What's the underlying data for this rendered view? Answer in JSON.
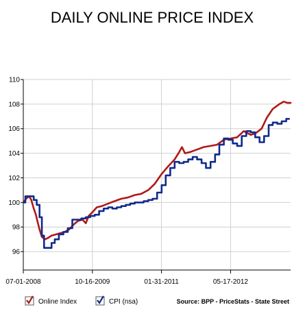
{
  "chart_data": {
    "type": "line",
    "title": "DAILY ONLINE PRICE INDEX",
    "source": "Source: BPP - PriceStats - State Street",
    "x_ticks": [
      "07-01-2008",
      "10-16-2009",
      "01-31-2011",
      "05-17-2012"
    ],
    "y_ticks": [
      "96",
      "98",
      "100",
      "102",
      "104",
      "106",
      "108",
      "110"
    ],
    "xlim": [
      "2008-07-01",
      "2013-07-01"
    ],
    "ylim": [
      94.5,
      110
    ],
    "grid": true,
    "legend_position": "bottom-left",
    "series": [
      {
        "name": "Online Index",
        "color": "#b01818",
        "style": "smooth",
        "points": [
          [
            "2008-07-01",
            100.0
          ],
          [
            "2008-07-20",
            100.3
          ],
          [
            "2008-08-10",
            100.5
          ],
          [
            "2008-08-25",
            100.2
          ],
          [
            "2008-09-10",
            99.5
          ],
          [
            "2008-09-25",
            99.0
          ],
          [
            "2008-10-05",
            98.5
          ],
          [
            "2008-10-20",
            97.8
          ],
          [
            "2008-11-05",
            97.2
          ],
          [
            "2008-11-25",
            97.0
          ],
          [
            "2008-12-15",
            97.1
          ],
          [
            "2009-01-10",
            97.3
          ],
          [
            "2009-02-10",
            97.4
          ],
          [
            "2009-03-10",
            97.5
          ],
          [
            "2009-04-10",
            97.6
          ],
          [
            "2009-05-10",
            97.8
          ],
          [
            "2009-06-10",
            98.2
          ],
          [
            "2009-07-10",
            98.5
          ],
          [
            "2009-08-10",
            98.6
          ],
          [
            "2009-09-01",
            98.3
          ],
          [
            "2009-09-20",
            98.9
          ],
          [
            "2009-10-16",
            99.2
          ],
          [
            "2009-11-15",
            99.6
          ],
          [
            "2009-12-20",
            99.7
          ],
          [
            "2010-02-01",
            99.9
          ],
          [
            "2010-03-15",
            100.1
          ],
          [
            "2010-05-01",
            100.3
          ],
          [
            "2010-06-15",
            100.4
          ],
          [
            "2010-08-01",
            100.6
          ],
          [
            "2010-09-15",
            100.7
          ],
          [
            "2010-11-01",
            101.0
          ],
          [
            "2010-12-15",
            101.5
          ],
          [
            "2011-01-31",
            102.3
          ],
          [
            "2011-03-15",
            102.9
          ],
          [
            "2011-05-01",
            103.5
          ],
          [
            "2011-06-01",
            104.1
          ],
          [
            "2011-06-20",
            104.5
          ],
          [
            "2011-07-10",
            104.0
          ],
          [
            "2011-08-15",
            104.1
          ],
          [
            "2011-10-01",
            104.3
          ],
          [
            "2011-11-15",
            104.5
          ],
          [
            "2012-01-01",
            104.6
          ],
          [
            "2012-02-15",
            104.7
          ],
          [
            "2012-04-01",
            105.1
          ],
          [
            "2012-05-17",
            105.2
          ],
          [
            "2012-07-01",
            105.3
          ],
          [
            "2012-08-15",
            105.8
          ],
          [
            "2012-10-01",
            105.5
          ],
          [
            "2012-11-01",
            105.6
          ],
          [
            "2012-12-15",
            106.0
          ],
          [
            "2013-01-20",
            106.9
          ],
          [
            "2013-03-01",
            107.6
          ],
          [
            "2013-04-15",
            108.0
          ],
          [
            "2013-05-15",
            108.2
          ],
          [
            "2013-06-10",
            108.1
          ],
          [
            "2013-07-01",
            108.1
          ]
        ]
      },
      {
        "name": "CPI (nsa)",
        "color": "#102a8c",
        "style": "step",
        "points": [
          [
            "2008-07-01",
            100.0
          ],
          [
            "2008-07-15",
            100.5
          ],
          [
            "2008-09-10",
            100.2
          ],
          [
            "2008-10-01",
            99.8
          ],
          [
            "2008-10-20",
            98.8
          ],
          [
            "2008-11-05",
            97.3
          ],
          [
            "2008-11-20",
            96.3
          ],
          [
            "2008-12-15",
            96.3
          ],
          [
            "2009-01-10",
            96.7
          ],
          [
            "2009-02-01",
            97.0
          ],
          [
            "2009-03-01",
            97.4
          ],
          [
            "2009-04-01",
            97.6
          ],
          [
            "2009-05-01",
            97.9
          ],
          [
            "2009-06-01",
            98.6
          ],
          [
            "2009-07-01",
            98.6
          ],
          [
            "2009-08-01",
            98.7
          ],
          [
            "2009-09-01",
            98.8
          ],
          [
            "2009-10-01",
            98.9
          ],
          [
            "2009-11-01",
            99.0
          ],
          [
            "2009-12-01",
            99.3
          ],
          [
            "2010-01-01",
            99.5
          ],
          [
            "2010-02-01",
            99.6
          ],
          [
            "2010-03-01",
            99.5
          ],
          [
            "2010-04-01",
            99.6
          ],
          [
            "2010-05-01",
            99.7
          ],
          [
            "2010-06-01",
            99.8
          ],
          [
            "2010-07-01",
            99.9
          ],
          [
            "2010-08-01",
            100.0
          ],
          [
            "2010-09-01",
            100.0
          ],
          [
            "2010-10-01",
            100.1
          ],
          [
            "2010-11-01",
            100.2
          ],
          [
            "2010-12-01",
            100.3
          ],
          [
            "2011-01-01",
            100.8
          ],
          [
            "2011-02-01",
            101.4
          ],
          [
            "2011-03-01",
            102.2
          ],
          [
            "2011-04-01",
            102.8
          ],
          [
            "2011-05-01",
            103.3
          ],
          [
            "2011-06-01",
            103.2
          ],
          [
            "2011-07-01",
            103.3
          ],
          [
            "2011-08-01",
            103.5
          ],
          [
            "2011-09-01",
            103.7
          ],
          [
            "2011-10-01",
            103.5
          ],
          [
            "2011-11-01",
            103.2
          ],
          [
            "2011-12-01",
            102.8
          ],
          [
            "2012-01-01",
            103.3
          ],
          [
            "2012-02-01",
            103.9
          ],
          [
            "2012-03-01",
            104.7
          ],
          [
            "2012-04-01",
            105.2
          ],
          [
            "2012-05-01",
            105.1
          ],
          [
            "2012-06-01",
            104.8
          ],
          [
            "2012-07-01",
            104.6
          ],
          [
            "2012-08-01",
            105.4
          ],
          [
            "2012-09-01",
            105.8
          ],
          [
            "2012-10-01",
            105.7
          ],
          [
            "2012-11-01",
            105.3
          ],
          [
            "2012-12-01",
            104.9
          ],
          [
            "2013-01-01",
            105.4
          ],
          [
            "2013-02-01",
            106.3
          ],
          [
            "2013-03-01",
            106.5
          ],
          [
            "2013-04-01",
            106.4
          ],
          [
            "2013-05-01",
            106.6
          ],
          [
            "2013-06-01",
            106.8
          ],
          [
            "2013-06-20",
            106.8
          ]
        ]
      }
    ]
  }
}
